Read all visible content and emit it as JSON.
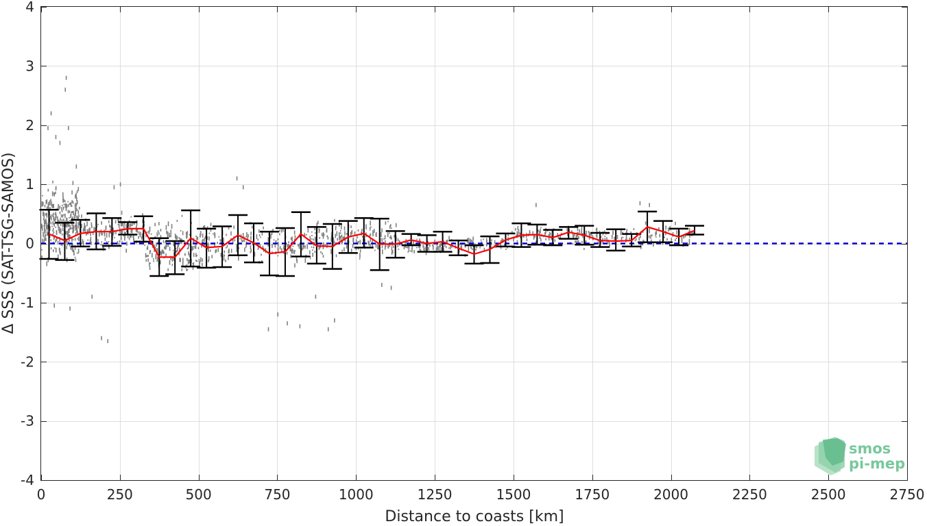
{
  "chart_data": {
    "type": "scatter",
    "title": "",
    "xlabel": "Distance to coasts [km]",
    "ylabel": "Δ SSS (SAT-TSG-SAMOS)",
    "xlim": [
      0,
      2750
    ],
    "ylim": [
      -4,
      4
    ],
    "x_ticks": [
      0,
      250,
      500,
      750,
      1000,
      1250,
      1500,
      1750,
      2000,
      2250,
      2500,
      2750
    ],
    "y_ticks": [
      -4,
      -3,
      -2,
      -1,
      0,
      1,
      2,
      3,
      4
    ],
    "x_tick_labels": [
      "0",
      "250",
      "500",
      "750",
      "1000",
      "1250",
      "1500",
      "1750",
      "2000",
      "2250",
      "2500",
      "2750"
    ],
    "y_tick_labels": [
      "-4",
      "-3",
      "-2",
      "-1",
      "0",
      "1",
      "2",
      "3",
      "4"
    ],
    "grid": true,
    "reference_line": {
      "y": 0,
      "color": "#0000cc",
      "style": "dashed"
    },
    "colors": {
      "points": "#808080",
      "mean_line": "#ff0000",
      "error_bars": "#000000",
      "axis": "#262626",
      "grid": "#dedede"
    },
    "series": [
      {
        "kind": "mean",
        "x": [
          25,
          75,
          125,
          175,
          225,
          275,
          325,
          375,
          425,
          475,
          525,
          575,
          625,
          675,
          725,
          775,
          825,
          875,
          925,
          975,
          1025,
          1075,
          1125,
          1175,
          1225,
          1275,
          1325,
          1375,
          1425,
          1475,
          1525,
          1575,
          1625,
          1675,
          1725,
          1775,
          1825,
          1875,
          1925,
          1975,
          2025,
          2075
        ],
        "values": [
          0.16,
          0.05,
          0.17,
          0.2,
          0.2,
          0.25,
          0.25,
          -0.23,
          -0.23,
          0.09,
          -0.07,
          -0.05,
          0.14,
          0.01,
          -0.17,
          -0.14,
          0.16,
          -0.04,
          -0.05,
          0.11,
          0.17,
          -0.01,
          -0.01,
          0.06,
          0.0,
          0.03,
          -0.08,
          -0.18,
          -0.1,
          0.06,
          0.14,
          0.15,
          0.1,
          0.19,
          0.14,
          0.05,
          0.04,
          0.05,
          0.28,
          0.2,
          0.11,
          0.22
        ],
        "lower": [
          -0.26,
          -0.28,
          -0.05,
          -0.1,
          -0.04,
          0.15,
          0.03,
          -0.55,
          -0.52,
          -0.39,
          -0.41,
          -0.4,
          -0.2,
          -0.32,
          -0.54,
          -0.55,
          -0.22,
          -0.34,
          -0.43,
          -0.16,
          -0.07,
          -0.45,
          -0.24,
          -0.03,
          -0.14,
          -0.14,
          -0.2,
          -0.34,
          -0.33,
          -0.05,
          -0.06,
          -0.02,
          -0.03,
          0.08,
          -0.02,
          -0.06,
          -0.12,
          -0.05,
          0.02,
          0.02,
          -0.03,
          0.15
        ],
        "upper": [
          0.57,
          0.35,
          0.4,
          0.51,
          0.43,
          0.36,
          0.46,
          0.09,
          0.04,
          0.56,
          0.25,
          0.29,
          0.48,
          0.34,
          0.2,
          0.26,
          0.53,
          0.28,
          0.33,
          0.38,
          0.43,
          0.42,
          0.21,
          0.16,
          0.14,
          0.2,
          0.05,
          -0.03,
          0.12,
          0.17,
          0.34,
          0.32,
          0.23,
          0.28,
          0.3,
          0.18,
          0.24,
          0.16,
          0.54,
          0.38,
          0.25,
          0.3
        ]
      },
      {
        "kind": "points",
        "clusters": [
          {
            "x0": 0,
            "x1": 120,
            "mean": 0.35,
            "spread": 0.55,
            "n": 340
          },
          {
            "x0": 120,
            "x1": 330,
            "mean": 0.18,
            "spread": 0.28,
            "n": 160
          },
          {
            "x0": 330,
            "x1": 520,
            "mean": -0.05,
            "spread": 0.35,
            "n": 200
          },
          {
            "x0": 520,
            "x1": 850,
            "mean": 0.0,
            "spread": 0.3,
            "n": 180
          },
          {
            "x0": 850,
            "x1": 1130,
            "mean": 0.08,
            "spread": 0.28,
            "n": 200
          },
          {
            "x0": 1130,
            "x1": 1480,
            "mean": -0.02,
            "spread": 0.12,
            "n": 140
          },
          {
            "x0": 1480,
            "x1": 2070,
            "mean": 0.13,
            "spread": 0.14,
            "n": 220
          }
        ],
        "outliers": [
          {
            "x": 20,
            "y": 1.95
          },
          {
            "x": 30,
            "y": 2.2
          },
          {
            "x": 45,
            "y": 1.8
          },
          {
            "x": 58,
            "y": 1.7
          },
          {
            "x": 75,
            "y": 2.6
          },
          {
            "x": 78,
            "y": 2.8
          },
          {
            "x": 85,
            "y": 1.95
          },
          {
            "x": 110,
            "y": 1.3
          },
          {
            "x": 90,
            "y": -1.1
          },
          {
            "x": 40,
            "y": -1.05
          },
          {
            "x": 160,
            "y": -0.9
          },
          {
            "x": 190,
            "y": -1.6
          },
          {
            "x": 210,
            "y": -1.65
          },
          {
            "x": 230,
            "y": 0.95
          },
          {
            "x": 250,
            "y": 1.0
          },
          {
            "x": 620,
            "y": 1.1
          },
          {
            "x": 640,
            "y": 0.95
          },
          {
            "x": 720,
            "y": -1.45
          },
          {
            "x": 750,
            "y": -1.2
          },
          {
            "x": 780,
            "y": -1.35
          },
          {
            "x": 820,
            "y": -1.4
          },
          {
            "x": 910,
            "y": -1.45
          },
          {
            "x": 930,
            "y": -1.3
          },
          {
            "x": 870,
            "y": -0.9
          },
          {
            "x": 1080,
            "y": -0.7
          },
          {
            "x": 1110,
            "y": -0.75
          },
          {
            "x": 1570,
            "y": 0.65
          },
          {
            "x": 1900,
            "y": 0.68
          },
          {
            "x": 1930,
            "y": 0.65
          }
        ]
      }
    ]
  },
  "logo": {
    "line1": "smos",
    "line2": "pi-mep"
  }
}
